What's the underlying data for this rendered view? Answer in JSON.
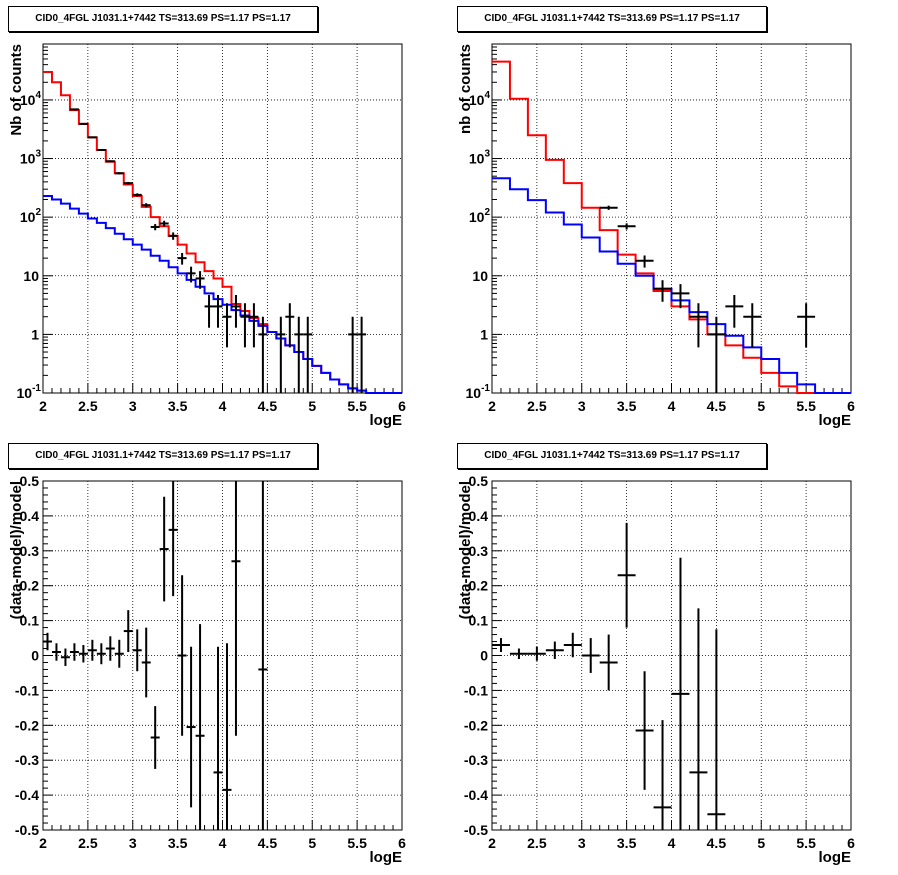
{
  "chart_data": [
    {
      "type": "line",
      "title": "CID0_4FGL J1031.1+7442 TS=313.69 PS=1.17 PS=1.17",
      "xlabel": "logE",
      "ylabel": "Nb of counts",
      "xlim": [
        2,
        6
      ],
      "ylim": [
        0.1,
        90000
      ],
      "log_y": true,
      "grid": true,
      "xticks": [
        "2",
        "2.5",
        "3",
        "3.5",
        "4",
        "4.5",
        "5",
        "5.5",
        "6"
      ],
      "yticks": [
        {
          "v": 0.1,
          "label": "10",
          "sup": "-1"
        },
        {
          "v": 1,
          "label": "1",
          "sup": ""
        },
        {
          "v": 10,
          "label": "10",
          "sup": ""
        },
        {
          "v": 100,
          "label": "10",
          "sup": "2"
        },
        {
          "v": 1000,
          "label": "10",
          "sup": "3"
        },
        {
          "v": 10000,
          "label": "10",
          "sup": "4"
        }
      ],
      "bin_width": 0.1,
      "series": [
        {
          "color": "#ff0000",
          "style": "step",
          "x": [
            2.0,
            2.1,
            2.2,
            2.3,
            2.4,
            2.5,
            2.6,
            2.7,
            2.8,
            2.9,
            3.0,
            3.1,
            3.2,
            3.3,
            3.4,
            3.5,
            3.6,
            3.7,
            3.8,
            3.9,
            4.0,
            4.1,
            4.2,
            4.3,
            4.4,
            4.5,
            4.6,
            4.7,
            4.8,
            4.9,
            5.0,
            5.1,
            5.2,
            5.3,
            5.4,
            5.5,
            5.6,
            5.7,
            5.8,
            5.9
          ],
          "values": [
            30000,
            20000,
            12000,
            6700,
            3900,
            2300,
            1400,
            880,
            560,
            360,
            230,
            150,
            100,
            70,
            48,
            34,
            24,
            17,
            12,
            9,
            6.5,
            3.3,
            2.5,
            1.9,
            1.5,
            1.1,
            0.85,
            0.65,
            0.5,
            0.38,
            0.29,
            0.22,
            0.17,
            0.14,
            0.12,
            0.11,
            0.1,
            0.1,
            0.1,
            0.1
          ]
        },
        {
          "color": "#0000ff",
          "style": "step",
          "x": [
            2.0,
            2.1,
            2.2,
            2.3,
            2.4,
            2.5,
            2.6,
            2.7,
            2.8,
            2.9,
            3.0,
            3.1,
            3.2,
            3.3,
            3.4,
            3.5,
            3.6,
            3.7,
            3.8,
            3.9,
            4.0,
            4.1,
            4.2,
            4.3,
            4.4,
            4.5,
            4.6,
            4.7,
            4.8,
            4.9,
            5.0,
            5.1,
            5.2,
            5.3,
            5.4,
            5.5,
            5.6,
            5.7,
            5.8,
            5.9
          ],
          "values": [
            230,
            200,
            170,
            140,
            115,
            95,
            80,
            65,
            52,
            42,
            34,
            28,
            22,
            18,
            14,
            11,
            8.5,
            6.5,
            5.0,
            4.0,
            3.2,
            2.6,
            2.1,
            1.7,
            1.4,
            1.1,
            0.85,
            0.65,
            0.5,
            0.38,
            0.29,
            0.22,
            0.17,
            0.14,
            0.12,
            0.11,
            0.1,
            0.1,
            0.1,
            0.1
          ]
        },
        {
          "color": "#000000",
          "style": "points",
          "x": [
            2.35,
            2.45,
            2.55,
            2.65,
            2.75,
            2.85,
            2.95,
            3.05,
            3.15,
            3.25,
            3.35,
            3.45,
            3.55,
            3.65,
            3.75,
            3.85,
            3.95,
            4.05,
            4.15,
            4.25,
            4.35,
            4.45,
            4.55,
            4.65,
            4.75,
            4.85,
            4.95,
            5.45,
            5.55
          ],
          "values": [
            6900,
            3900,
            2300,
            1400,
            900,
            560,
            380,
            240,
            160,
            68,
            78,
            48,
            20,
            11,
            9,
            3,
            3,
            2,
            3,
            2,
            2,
            1,
            0,
            1,
            2,
            1,
            1,
            1,
            1
          ],
          "errors": [
            83,
            62,
            48,
            37,
            30,
            24,
            19,
            15,
            13,
            8.2,
            8.8,
            6.9,
            4.5,
            3.3,
            3,
            1.7,
            1.7,
            1.4,
            1.7,
            1.4,
            1.4,
            1,
            0,
            1,
            1.4,
            1,
            1,
            1,
            1
          ]
        }
      ]
    },
    {
      "type": "line",
      "title": "CID0_4FGL J1031.1+7442 TS=313.69 PS=1.17 PS=1.17",
      "xlabel": "logE",
      "ylabel": "nb of counts",
      "xlim": [
        2,
        6
      ],
      "ylim": [
        0.1,
        90000
      ],
      "log_y": true,
      "grid": true,
      "xticks": [
        "2",
        "2.5",
        "3",
        "3.5",
        "4",
        "4.5",
        "5",
        "5.5",
        "6"
      ],
      "yticks": [
        {
          "v": 0.1,
          "label": "10",
          "sup": "-1"
        },
        {
          "v": 1,
          "label": "1",
          "sup": ""
        },
        {
          "v": 10,
          "label": "10",
          "sup": ""
        },
        {
          "v": 100,
          "label": "10",
          "sup": "2"
        },
        {
          "v": 1000,
          "label": "10",
          "sup": "3"
        },
        {
          "v": 10000,
          "label": "10",
          "sup": "4"
        }
      ],
      "bin_width": 0.2,
      "series": [
        {
          "color": "#ff0000",
          "style": "step",
          "x": [
            2.0,
            2.2,
            2.4,
            2.6,
            2.8,
            3.0,
            3.2,
            3.4,
            3.6,
            3.8,
            4.0,
            4.2,
            4.4,
            4.6,
            4.8,
            5.0,
            5.2,
            5.4,
            5.6,
            5.8
          ],
          "values": [
            45000,
            10500,
            2500,
            950,
            380,
            145,
            60,
            23,
            11,
            5.5,
            3.0,
            1.8,
            1.0,
            0.65,
            0.4,
            0.22,
            0.13,
            0.1,
            0.1,
            0.1
          ]
        },
        {
          "color": "#0000ff",
          "style": "step",
          "x": [
            2.0,
            2.2,
            2.4,
            2.6,
            2.8,
            3.0,
            3.2,
            3.4,
            3.6,
            3.8,
            4.0,
            4.2,
            4.4,
            4.6,
            4.8,
            5.0,
            5.2,
            5.4,
            5.6,
            5.8
          ],
          "values": [
            460,
            300,
            195,
            120,
            75,
            45,
            26,
            16,
            10,
            6.0,
            3.8,
            2.4,
            1.5,
            0.95,
            0.6,
            0.38,
            0.22,
            0.14,
            0.1,
            0.1
          ]
        },
        {
          "color": "#000000",
          "style": "points",
          "x": [
            3.3,
            3.5,
            3.7,
            3.9,
            4.1,
            4.3,
            4.5,
            4.7,
            4.9,
            5.5
          ],
          "values": [
            145,
            70,
            18,
            6,
            5,
            2,
            1,
            3,
            2,
            2
          ],
          "errors": [
            12,
            8.4,
            4.2,
            2.4,
            2.2,
            1.4,
            1,
            1.7,
            1.4,
            1.4
          ]
        }
      ]
    },
    {
      "type": "scatter",
      "title": "CID0_4FGL J1031.1+7442 TS=313.69 PS=1.17 PS=1.17",
      "xlabel": "logE",
      "ylabel": "(data-model)/model",
      "xlim": [
        2,
        6
      ],
      "ylim": [
        -0.5,
        0.5
      ],
      "grid": true,
      "xticks": [
        "2",
        "2.5",
        "3",
        "3.5",
        "4",
        "4.5",
        "5",
        "5.5",
        "6"
      ],
      "yticks": [
        {
          "v": -0.5,
          "label": "-0.5"
        },
        {
          "v": -0.4,
          "label": "-0.4"
        },
        {
          "v": -0.3,
          "label": "-0.3"
        },
        {
          "v": -0.2,
          "label": "-0.2"
        },
        {
          "v": -0.1,
          "label": "-0.1"
        },
        {
          "v": 0,
          "label": "0"
        },
        {
          "v": 0.1,
          "label": "0.1"
        },
        {
          "v": 0.2,
          "label": "0.2"
        },
        {
          "v": 0.3,
          "label": "0.3"
        },
        {
          "v": 0.4,
          "label": "0.4"
        },
        {
          "v": 0.5,
          "label": "0.5"
        }
      ],
      "bin_width": 0.1,
      "series": [
        {
          "color": "#000000",
          "style": "points",
          "x": [
            2.05,
            2.15,
            2.25,
            2.35,
            2.45,
            2.55,
            2.65,
            2.75,
            2.85,
            2.95,
            3.05,
            3.15,
            3.25,
            3.35,
            3.45,
            3.55,
            3.65,
            3.75,
            3.95,
            4.05,
            4.15,
            4.45
          ],
          "values": [
            0.04,
            0.01,
            -0.005,
            0.01,
            0.005,
            0.015,
            0.005,
            0.02,
            0.005,
            0.07,
            0.015,
            -0.02,
            -0.235,
            0.305,
            0.36,
            0.0,
            -0.205,
            -0.23,
            -0.335,
            -0.385,
            0.27,
            -0.04
          ],
          "errors": [
            0.025,
            0.025,
            0.025,
            0.025,
            0.025,
            0.03,
            0.03,
            0.035,
            0.04,
            0.06,
            0.06,
            0.1,
            0.09,
            0.15,
            0.19,
            0.23,
            0.23,
            0.32,
            0.36,
            0.42,
            0.5,
            0.55
          ]
        }
      ]
    },
    {
      "type": "scatter",
      "title": "CID0_4FGL J1031.1+7442 TS=313.69 PS=1.17 PS=1.17",
      "xlabel": "logE",
      "ylabel": "(data-model)/model",
      "xlim": [
        2,
        6
      ],
      "ylim": [
        -0.5,
        0.5
      ],
      "grid": true,
      "xticks": [
        "2",
        "2.5",
        "3",
        "3.5",
        "4",
        "4.5",
        "5",
        "5.5",
        "6"
      ],
      "yticks": [
        {
          "v": -0.5,
          "label": "-0.5"
        },
        {
          "v": -0.4,
          "label": "-0.4"
        },
        {
          "v": -0.3,
          "label": "-0.3"
        },
        {
          "v": -0.2,
          "label": "-0.2"
        },
        {
          "v": -0.1,
          "label": "-0.1"
        },
        {
          "v": 0,
          "label": "0"
        },
        {
          "v": 0.1,
          "label": "0.1"
        },
        {
          "v": 0.2,
          "label": "0.2"
        },
        {
          "v": 0.3,
          "label": "0.3"
        },
        {
          "v": 0.4,
          "label": "0.4"
        },
        {
          "v": 0.5,
          "label": "0.5"
        }
      ],
      "bin_width": 0.2,
      "series": [
        {
          "color": "#000000",
          "style": "points",
          "x": [
            2.1,
            2.3,
            2.5,
            2.7,
            2.9,
            3.1,
            3.3,
            3.5,
            3.7,
            3.9,
            4.1,
            4.3,
            4.5
          ],
          "values": [
            0.03,
            0.005,
            0.005,
            0.015,
            0.03,
            0.0,
            -0.02,
            0.23,
            -0.215,
            -0.435,
            -0.11,
            -0.335,
            -0.455
          ],
          "errors": [
            0.02,
            0.015,
            0.02,
            0.025,
            0.035,
            0.05,
            0.08,
            0.15,
            0.17,
            0.25,
            0.39,
            0.47,
            0.53
          ]
        }
      ]
    }
  ]
}
